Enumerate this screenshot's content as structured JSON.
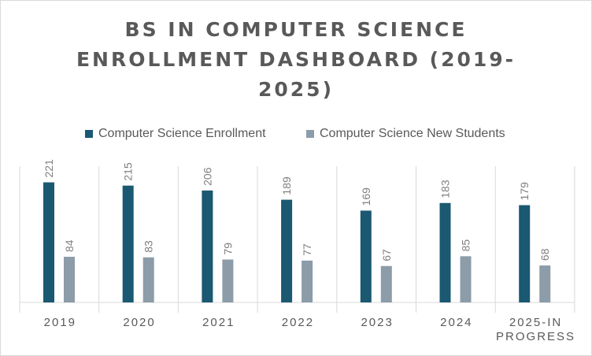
{
  "chart_data": {
    "type": "bar",
    "title": "BS IN COMPUTER SCIENCE ENROLLMENT DASHBOARD (2019-2025)",
    "title_lines": [
      "BS IN COMPUTER SCIENCE",
      "ENROLLMENT DASHBOARD (2019-",
      "2025)"
    ],
    "categories": [
      "2019",
      "2020",
      "2021",
      "2022",
      "2023",
      "2024",
      "2025-IN PROGRESS"
    ],
    "category_lines": [
      [
        "2019"
      ],
      [
        "2020"
      ],
      [
        "2021"
      ],
      [
        "2022"
      ],
      [
        "2023"
      ],
      [
        "2024"
      ],
      [
        "2025-IN",
        "PROGRESS"
      ]
    ],
    "series": [
      {
        "name": "Computer Science Enrollment",
        "color": "#1b5872",
        "values": [
          221,
          215,
          206,
          189,
          169,
          183,
          179
        ]
      },
      {
        "name": "Computer Science New Students",
        "color": "#8c9ca8",
        "values": [
          84,
          83,
          79,
          77,
          67,
          85,
          68
        ]
      }
    ],
    "ylim": [
      0,
      240
    ],
    "xlabel": "",
    "ylabel": "",
    "grid": false,
    "legend_position": "top"
  }
}
